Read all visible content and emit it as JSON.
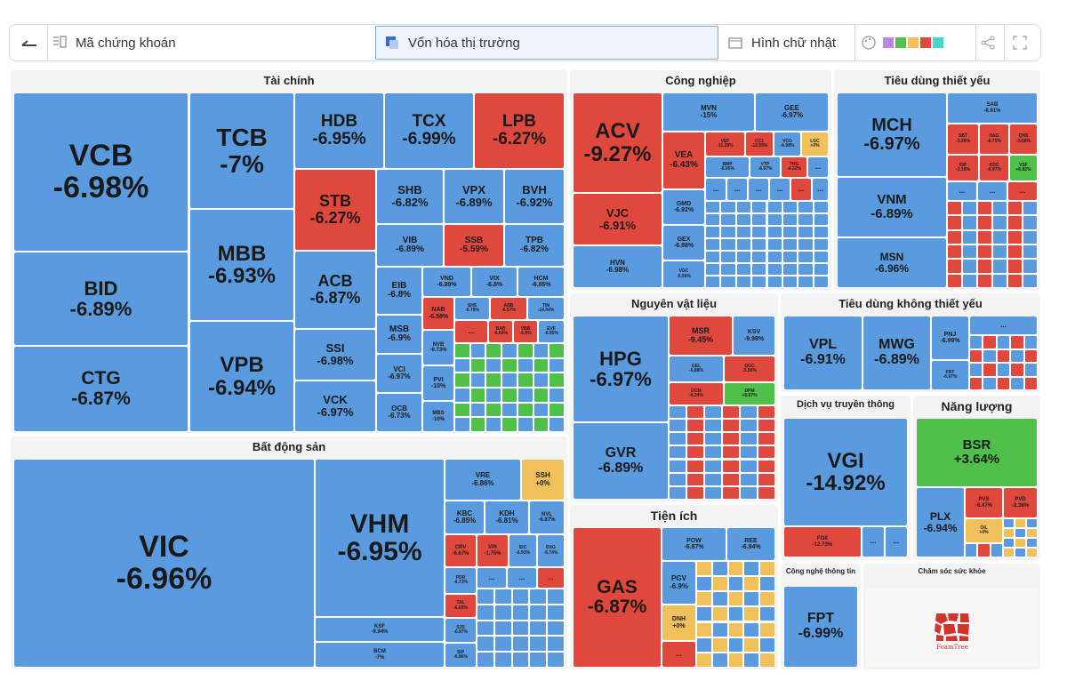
{
  "toolbar": {
    "symbol_label": "Mã chứng khoán",
    "metric_label": "Vốn hóa thị trường",
    "shape_label": "Hình chữ nhật",
    "swatches": [
      "#b888e8",
      "#4fc14a",
      "#f0c05a",
      "#e0483e",
      "#4fd2d6"
    ]
  },
  "colors": {
    "down": "#5a9be0",
    "red": "#e0483e",
    "up": "#4fc14a",
    "flat": "#f0c05a"
  },
  "sectors": {
    "tai_chinh": "Tài chính",
    "cong_nghiep": "Công nghiệp",
    "tieu_dung_thiet_yeu": "Tiêu dùng thiết yếu",
    "bat_dong_san": "Bất động sản",
    "nguyen_vat_lieu": "Nguyên vật liệu",
    "tieu_dung_khong_thiet_yeu": "Tiêu dùng không thiết yếu",
    "dich_vu_truyen_thong": "Dịch vụ truyền thông",
    "nang_luong": "Năng lượng",
    "tien_ich": "Tiện ích",
    "cong_nghe": "Công nghệ thông tin",
    "cham_soc": "Chăm sóc sức khỏe"
  },
  "stocks": {
    "VCB": {
      "code": "VCB",
      "chg": "-6.98%"
    },
    "BID": {
      "code": "BID",
      "chg": "-6.89%"
    },
    "CTG": {
      "code": "CTG",
      "chg": "-6.87%"
    },
    "TCB": {
      "code": "TCB",
      "chg": "-7%"
    },
    "MBB": {
      "code": "MBB",
      "chg": "-6.93%"
    },
    "VPB": {
      "code": "VPB",
      "chg": "-6.94%"
    },
    "HDB": {
      "code": "HDB",
      "chg": "-6.95%"
    },
    "TCX": {
      "code": "TCX",
      "chg": "-6.99%"
    },
    "LPB": {
      "code": "LPB",
      "chg": "-6.27%"
    },
    "STB": {
      "code": "STB",
      "chg": "-6.27%"
    },
    "ACB": {
      "code": "ACB",
      "chg": "-6.87%"
    },
    "SSI": {
      "code": "SSI",
      "chg": "-6.98%"
    },
    "VCK": {
      "code": "VCK",
      "chg": "-6.97%"
    },
    "SHB": {
      "code": "SHB",
      "chg": "-6.82%"
    },
    "VPX": {
      "code": "VPX",
      "chg": "-6.89%"
    },
    "BVH": {
      "code": "BVH",
      "chg": "-6.92%"
    },
    "VIB": {
      "code": "VIB",
      "chg": "-6.89%"
    },
    "SSB": {
      "code": "SSB",
      "chg": "-5.59%"
    },
    "TPB": {
      "code": "TPB",
      "chg": "-6.82%"
    },
    "EIB": {
      "code": "EIB",
      "chg": "-6.8%"
    },
    "VND": {
      "code": "VND",
      "chg": "-6.89%"
    },
    "VIX": {
      "code": "VIX",
      "chg": "-6.8%"
    },
    "HCM": {
      "code": "HCM",
      "chg": "-6.85%"
    },
    "MSB": {
      "code": "MSB",
      "chg": "-6.9%"
    },
    "NAB": {
      "code": "NAB",
      "chg": "-6.59%"
    },
    "SHS": {
      "code": "SHS",
      "chg": "-6.78%"
    },
    "ABB": {
      "code": "ABB",
      "chg": "-6.57%"
    },
    "TIN": {
      "code": "TIN",
      "chg": "-14.94%"
    },
    "BAB": {
      "code": "BAB",
      "chg": "-6.64%"
    },
    "VBB": {
      "code": "VBB",
      "chg": "-6.8%"
    },
    "EVF": {
      "code": "EVF",
      "chg": "-6.95%"
    },
    "NVB": {
      "code": "NVB",
      "chg": "-9.73%"
    },
    "VCI": {
      "code": "VCI",
      "chg": "-6.97%"
    },
    "PVI": {
      "code": "PVI",
      "chg": "-10%"
    },
    "OCB": {
      "code": "OCB",
      "chg": "-6.73%"
    },
    "MBS": {
      "code": "MBS",
      "chg": "-10%"
    },
    "VIC": {
      "code": "VIC",
      "chg": "-6.96%"
    },
    "VHM": {
      "code": "VHM",
      "chg": "-6.95%"
    },
    "VRE": {
      "code": "VRE",
      "chg": "-6.86%"
    },
    "SSH": {
      "code": "SSH",
      "chg": "+0%"
    },
    "KBC": {
      "code": "KBC",
      "chg": "-6.85%"
    },
    "KDH": {
      "code": "KDH",
      "chg": "-6.81%"
    },
    "NVL": {
      "code": "NVL",
      "chg": "-6.87%"
    },
    "CRV": {
      "code": "CRV",
      "chg": "-6.67%"
    },
    "VPI": {
      "code": "VPI",
      "chg": "-1.75%"
    },
    "IDC": {
      "code": "IDC",
      "chg": "-6.93%"
    },
    "DXG": {
      "code": "DXG",
      "chg": "-6.74%"
    },
    "PDR": {
      "code": "PDR",
      "chg": "-6.73%"
    },
    "TAL": {
      "code": "TAL",
      "chg": "-6.65%"
    },
    "SJS": {
      "code": "SJS",
      "chg": "-6.97%"
    },
    "SIP": {
      "code": "SIP",
      "chg": "-6.86%"
    },
    "KSF": {
      "code": "KSF",
      "chg": "-9.94%"
    },
    "BCM": {
      "code": "BCM",
      "chg": "-7%"
    },
    "ACV": {
      "code": "ACV",
      "chg": "-9.27%"
    },
    "VJC": {
      "code": "VJC",
      "chg": "-6.91%"
    },
    "HVN": {
      "code": "HVN",
      "chg": "-6.98%"
    },
    "MVN": {
      "code": "MVN",
      "chg": "-15%"
    },
    "GEE": {
      "code": "GEE",
      "chg": "-6.97%"
    },
    "VEA": {
      "code": "VEA",
      "chg": "-6.43%"
    },
    "VEF": {
      "code": "VEF",
      "chg": "-11.28%"
    },
    "CC1": {
      "code": "CC1",
      "chg": "-12.59%"
    },
    "VCG": {
      "code": "VCG",
      "chg": "-6.98%"
    },
    "LGC": {
      "code": "LGC",
      "chg": "+0%"
    },
    "BMP": {
      "code": "BMP",
      "chg": "-6.95%"
    },
    "VTP": {
      "code": "VTP",
      "chg": "-6.97%"
    },
    "THG": {
      "code": "THG",
      "chg": "-4.22%"
    },
    "GMD": {
      "code": "GMD",
      "chg": "-6.92%"
    },
    "GEX": {
      "code": "GEX",
      "chg": "-6.88%"
    },
    "VGC": {
      "code": "VGC",
      "chg": "-6.95%"
    },
    "MCH": {
      "code": "MCH",
      "chg": "-6.97%"
    },
    "VNM": {
      "code": "VNM",
      "chg": "-6.89%"
    },
    "MSN": {
      "code": "MSN",
      "chg": "-6.96%"
    },
    "SAB": {
      "code": "SAB",
      "chg": "-6.91%"
    },
    "SBT": {
      "code": "SBT",
      "chg": "-3.26%"
    },
    "HAG": {
      "code": "HAG",
      "chg": "-6.75%"
    },
    "QNS": {
      "code": "QNS",
      "chg": "-3.68%"
    },
    "IDP": {
      "code": "IDP",
      "chg": "-2.19%"
    },
    "KDC": {
      "code": "KDC",
      "chg": "-6.97%"
    },
    "VSF": {
      "code": "VSF",
      "chg": "+6.82%"
    },
    "HPG": {
      "code": "HPG",
      "chg": "-6.97%"
    },
    "GVR": {
      "code": "GVR",
      "chg": "-6.89%"
    },
    "MSR": {
      "code": "MSR",
      "chg": "-9.45%"
    },
    "KSV": {
      "code": "KSV",
      "chg": "-9.98%"
    },
    "GEL": {
      "code": "GEL",
      "chg": "-6.88%"
    },
    "DGC": {
      "code": "DGC",
      "chg": "-3.56%"
    },
    "DCM": {
      "code": "DCM",
      "chg": "-6.24%"
    },
    "DPM": {
      "code": "DPM",
      "chg": "+6.67%"
    },
    "VPL": {
      "code": "VPL",
      "chg": "-6.91%"
    },
    "MWG": {
      "code": "MWG",
      "chg": "-6.89%"
    },
    "PNJ": {
      "code": "PNJ",
      "chg": "-6.99%"
    },
    "FRT": {
      "code": "FRT",
      "chg": "-6.97%"
    },
    "VGI": {
      "code": "VGI",
      "chg": "-14.92%"
    },
    "FOX": {
      "code": "FOX",
      "chg": "-12.73%"
    },
    "BSR": {
      "code": "BSR",
      "chg": "+3.64%"
    },
    "PLX": {
      "code": "PLX",
      "chg": "-6.94%"
    },
    "PVS": {
      "code": "PVS",
      "chg": "-6.47%"
    },
    "PVD": {
      "code": "PVD",
      "chg": "-2.36%"
    },
    "OIL": {
      "code": "OIL",
      "chg": "+0%"
    },
    "GAS": {
      "code": "GAS",
      "chg": "-6.87%"
    },
    "POW": {
      "code": "POW",
      "chg": "-6.87%"
    },
    "REE": {
      "code": "REE",
      "chg": "-6.94%"
    },
    "PGV": {
      "code": "PGV",
      "chg": "-6.9%"
    },
    "DNH": {
      "code": "DNH",
      "chg": "+0%"
    },
    "FPT": {
      "code": "FPT",
      "chg": "-6.99%"
    }
  },
  "more_label": "...",
  "logo_text": "FoamTree"
}
